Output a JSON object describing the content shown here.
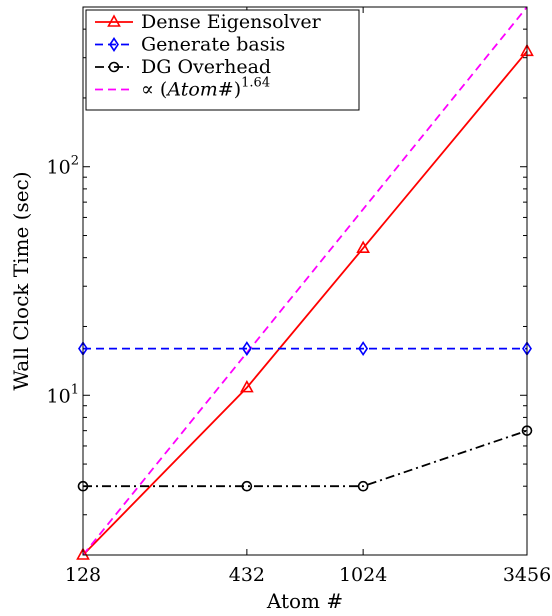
{
  "chart_data": {
    "type": "line",
    "xscale": "log",
    "yscale": "log",
    "xlabel": "Atom #",
    "ylabel": "Wall Clock Time (sec)",
    "xlim": [
      128,
      3456
    ],
    "ylim": [
      2,
      500
    ],
    "xticks": [
      128,
      432,
      1024,
      3456
    ],
    "yticks": [
      {
        "value": 10,
        "base": "10",
        "exp": "1"
      },
      {
        "value": 100,
        "base": "10",
        "exp": "2"
      }
    ],
    "grid": false,
    "legend_position": "top-left",
    "x": [
      128,
      432,
      1024,
      3456
    ],
    "series": [
      {
        "name": "Dense Eigensolver",
        "values": [
          2,
          10.8,
          44,
          320
        ],
        "color": "#ff0000",
        "dash": "solid",
        "marker": "triangle"
      },
      {
        "name": "Generate basis",
        "values": [
          16,
          16,
          16,
          16
        ],
        "color": "#0000ff",
        "dash": "dashed",
        "marker": "diamond"
      },
      {
        "name": "DG Overhead",
        "values": [
          4,
          4,
          4,
          7
        ],
        "color": "#000000",
        "dash": "dashdot",
        "marker": "circle"
      },
      {
        "name_prefix": "∝ (",
        "name_italic": "Atom#",
        "name_suffix": ")",
        "name_exp": "1.64",
        "x": [
          128,
          3456
        ],
        "values": [
          2,
          500
        ],
        "color": "#ff00ff",
        "dash": "dashed",
        "marker": "none"
      }
    ]
  }
}
